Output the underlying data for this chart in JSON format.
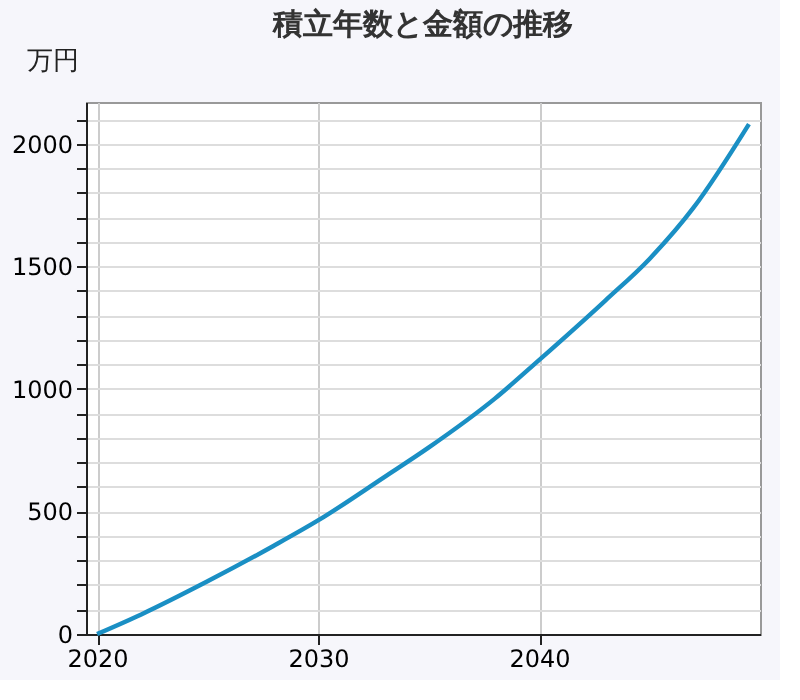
{
  "chart_data": {
    "type": "line",
    "title": "積立年数と金額の推移",
    "ylabel": "万円",
    "x": [
      2020,
      2022,
      2025,
      2028,
      2030,
      2033,
      2035,
      2038,
      2040,
      2043,
      2045,
      2047,
      2049.5
    ],
    "series": [
      {
        "color": "#1a8fc4",
        "values": [
          0,
          80,
          215,
          360,
          463,
          640,
          760,
          960,
          1117,
          1360,
          1530,
          1740,
          2080
        ]
      }
    ],
    "xlim": [
      2019.5,
      2050
    ],
    "xticks": [
      2020,
      2030,
      2040
    ],
    "ylim": [
      0,
      2170
    ],
    "yticks": [
      0,
      {
        "value": 100,
        "label": null
      },
      {
        "value": 200,
        "label": null
      },
      {
        "value": 300,
        "label": null
      },
      {
        "value": 400,
        "label": null
      },
      500,
      {
        "value": 600,
        "label": null
      },
      {
        "value": 700,
        "label": null
      },
      {
        "value": 800,
        "label": null
      },
      {
        "value": 900,
        "label": null
      },
      1000,
      {
        "value": 1100,
        "label": null
      },
      {
        "value": 1200,
        "label": null
      },
      {
        "value": 1300,
        "label": null
      },
      {
        "value": 1400,
        "label": null
      },
      1500,
      {
        "value": 1600,
        "label": null
      },
      {
        "value": 1700,
        "label": null
      },
      {
        "value": 1800,
        "label": null
      },
      {
        "value": 1900,
        "label": null
      },
      2000,
      {
        "value": 2100,
        "label": null
      }
    ],
    "grid": true,
    "legend": false,
    "marker": "none",
    "line_style": "solid"
  }
}
